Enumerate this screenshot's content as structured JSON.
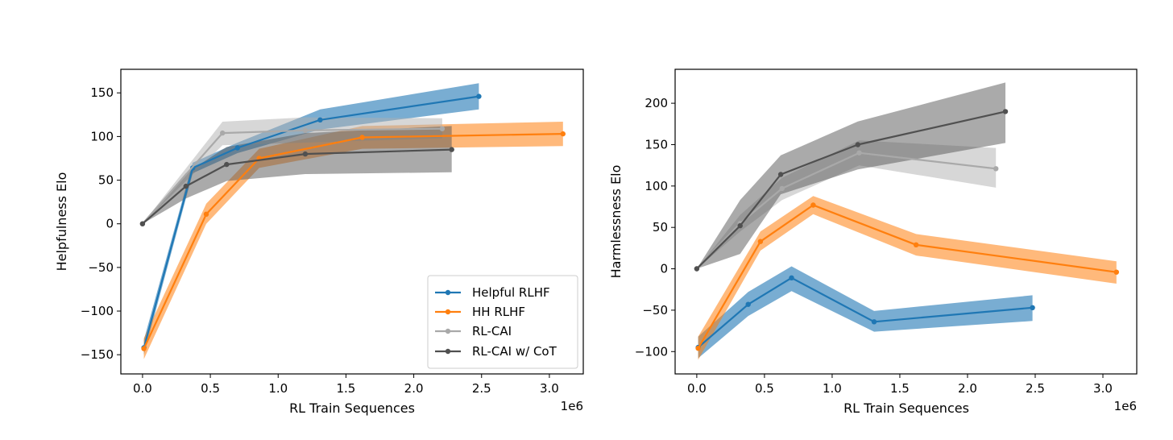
{
  "chart_data": [
    {
      "type": "line",
      "title": "",
      "xlabel": "RL Train Sequences",
      "ylabel": "Helpfulness Elo",
      "x_offset_label": "1e6",
      "xlim": [
        -0.16,
        3.25
      ],
      "ylim": [
        -172,
        177
      ],
      "xticks": [
        0.0,
        0.5,
        1.0,
        1.5,
        2.0,
        2.5,
        3.0
      ],
      "xtick_labels": [
        "0.0",
        "0.5",
        "1.0",
        "1.5",
        "2.0",
        "2.5",
        "3.0"
      ],
      "yticks": [
        -150,
        -100,
        -50,
        0,
        50,
        100,
        150
      ],
      "ytick_labels": [
        "−150",
        "−100",
        "−50",
        "0",
        "50",
        "100",
        "150"
      ],
      "legend": {
        "position": "lower-right",
        "entries": [
          "Helpful RLHF",
          "HH RLHF",
          "RL-CAI",
          "RL-CAI w/ CoT"
        ]
      },
      "series": [
        {
          "name": "Helpful RLHF",
          "color": "#1f77b4",
          "band_color": "#1f77b4",
          "band_opacity": 0.6,
          "x": [
            0.01,
            0.37,
            0.7,
            1.31,
            2.48
          ],
          "values": [
            -142,
            64,
            87,
            119,
            146
          ],
          "lower": [
            -150,
            58,
            81,
            108,
            131
          ],
          "upper": [
            -133,
            70,
            93,
            131,
            161
          ]
        },
        {
          "name": "HH RLHF",
          "color": "#ff7f0e",
          "band_color": "#ff7f0e",
          "band_opacity": 0.55,
          "x": [
            0.01,
            0.47,
            0.86,
            1.62,
            3.1
          ],
          "values": [
            -143,
            11,
            75,
            99,
            103
          ],
          "lower": [
            -155,
            0,
            64,
            86,
            89
          ],
          "upper": [
            -131,
            23,
            86,
            112,
            117
          ]
        },
        {
          "name": "RL-CAI",
          "color": "#a9a9a9",
          "band_color": "#b0b0b0",
          "band_opacity": 0.5,
          "x": [
            0.0,
            0.59,
            1.2,
            2.21
          ],
          "values": [
            0,
            104,
            107,
            109
          ],
          "lower": [
            0,
            90,
            93,
            98
          ],
          "upper": [
            0,
            117,
            122,
            121
          ]
        },
        {
          "name": "RL-CAI w/ CoT",
          "color": "#505050",
          "band_color": "#555555",
          "band_opacity": 0.5,
          "x": [
            0.0,
            0.32,
            0.62,
            1.2,
            2.28
          ],
          "values": [
            0,
            43,
            68,
            80,
            85
          ],
          "lower": [
            0,
            29,
            49,
            57,
            59
          ],
          "upper": [
            0,
            58,
            88,
            104,
            112
          ]
        }
      ]
    },
    {
      "type": "line",
      "title": "",
      "xlabel": "RL Train Sequences",
      "ylabel": "Harmlessness Elo",
      "x_offset_label": "1e6",
      "xlim": [
        -0.16,
        3.25
      ],
      "ylim": [
        -127,
        241
      ],
      "xticks": [
        0.0,
        0.5,
        1.0,
        1.5,
        2.0,
        2.5,
        3.0
      ],
      "xtick_labels": [
        "0.0",
        "0.5",
        "1.0",
        "1.5",
        "2.0",
        "2.5",
        "3.0"
      ],
      "yticks": [
        -100,
        -50,
        0,
        50,
        100,
        150,
        200
      ],
      "ytick_labels": [
        "−100",
        "−50",
        "0",
        "50",
        "100",
        "150",
        "200"
      ],
      "series": [
        {
          "name": "Helpful RLHF",
          "color": "#1f77b4",
          "band_color": "#1f77b4",
          "band_opacity": 0.6,
          "x": [
            0.01,
            0.38,
            0.7,
            1.31,
            2.48
          ],
          "values": [
            -95,
            -43,
            -11,
            -64,
            -47
          ],
          "lower": [
            -108,
            -57,
            -27,
            -76,
            -63
          ],
          "upper": [
            -82,
            -28,
            3,
            -51,
            -32
          ]
        },
        {
          "name": "HH RLHF",
          "color": "#ff7f0e",
          "band_color": "#ff7f0e",
          "band_opacity": 0.55,
          "x": [
            0.01,
            0.47,
            0.86,
            1.62,
            3.1
          ],
          "values": [
            -96,
            33,
            77,
            29,
            -4
          ],
          "lower": [
            -110,
            22,
            66,
            16,
            -18
          ],
          "upper": [
            -82,
            45,
            88,
            42,
            9
          ]
        },
        {
          "name": "RL-CAI",
          "color": "#a9a9a9",
          "band_color": "#b0b0b0",
          "band_opacity": 0.5,
          "x": [
            0.0,
            0.32,
            0.63,
            1.2,
            2.21
          ],
          "values": [
            0,
            55,
            97,
            140,
            121
          ],
          "lower": [
            0,
            45,
            83,
            125,
            98
          ],
          "upper": [
            0,
            65,
            110,
            155,
            146
          ]
        },
        {
          "name": "RL-CAI w/ CoT",
          "color": "#505050",
          "band_color": "#555555",
          "band_opacity": 0.5,
          "x": [
            0.0,
            0.32,
            0.62,
            1.19,
            2.28
          ],
          "values": [
            0,
            52,
            114,
            150,
            190
          ],
          "lower": [
            0,
            18,
            90,
            120,
            152
          ],
          "upper": [
            0,
            83,
            137,
            178,
            225
          ]
        }
      ]
    }
  ]
}
